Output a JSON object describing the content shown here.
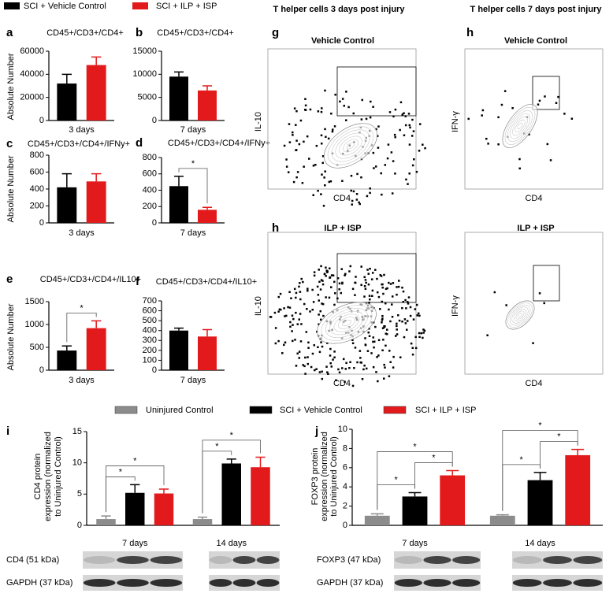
{
  "chart_data": [
    {
      "type": "bar",
      "panel": "a",
      "title": "CD45+/CD3+/CD4+",
      "ylabel": [
        "Absolute Number"
      ],
      "categories": [
        "3 days"
      ],
      "series": [
        {
          "name": "SCI + Vehicle Control",
          "color": "#000000",
          "values": [
            32000
          ],
          "errors": [
            8000
          ]
        },
        {
          "name": "SCI + ILP + ISP",
          "color": "#e31a1c",
          "values": [
            48000
          ],
          "errors": [
            7000
          ]
        }
      ],
      "ylim": [
        0,
        60000
      ],
      "yticks": [
        0,
        20000,
        40000,
        60000
      ]
    },
    {
      "type": "bar",
      "panel": "b",
      "title": "CD45+/CD3+/CD4+",
      "categories": [
        "7 days"
      ],
      "series": [
        {
          "name": "SCI + Vehicle Control",
          "color": "#000000",
          "values": [
            9500
          ],
          "errors": [
            1000
          ]
        },
        {
          "name": "SCI + ILP + ISP",
          "color": "#e31a1c",
          "values": [
            6500
          ],
          "errors": [
            1000
          ]
        }
      ],
      "ylim": [
        0,
        15000
      ],
      "yticks": [
        0,
        5000,
        10000,
        15000
      ]
    },
    {
      "type": "bar",
      "panel": "c",
      "title": "CD45+/CD3+/CD4+/IFNy+",
      "ylabel": [
        "Absolute Number"
      ],
      "categories": [
        "3 days"
      ],
      "series": [
        {
          "name": "SCI + Vehicle Control",
          "color": "#000000",
          "values": [
            420
          ],
          "errors": [
            160
          ]
        },
        {
          "name": "SCI + ILP + ISP",
          "color": "#e31a1c",
          "values": [
            490
          ],
          "errors": [
            90
          ]
        }
      ],
      "ylim": [
        0,
        800
      ],
      "yticks": [
        0,
        200,
        400,
        600,
        800
      ]
    },
    {
      "type": "bar",
      "panel": "d",
      "title": "CD45+/CD3+/CD4+/IFNy+",
      "categories": [
        "7 days"
      ],
      "series": [
        {
          "name": "SCI + Vehicle Control",
          "color": "#000000",
          "values": [
            450
          ],
          "errors": [
            120
          ]
        },
        {
          "name": "SCI + ILP + ISP",
          "color": "#e31a1c",
          "values": [
            160
          ],
          "errors": [
            30
          ]
        }
      ],
      "ylim": [
        0,
        800
      ],
      "yticks": [
        0,
        200,
        400,
        600,
        800
      ],
      "significance": [
        {
          "label": "*",
          "category": 0,
          "series": [
            0,
            1
          ]
        }
      ]
    },
    {
      "type": "bar",
      "panel": "e",
      "title": "CD45+/CD3+/CD4+/IL10+",
      "ylabel": [
        "Absolute Number"
      ],
      "categories": [
        "3 days"
      ],
      "series": [
        {
          "name": "SCI + Vehicle Control",
          "color": "#000000",
          "values": [
            430
          ],
          "errors": [
            100
          ]
        },
        {
          "name": "SCI + ILP + ISP",
          "color": "#e31a1c",
          "values": [
            920
          ],
          "errors": [
            160
          ]
        }
      ],
      "ylim": [
        0,
        1500
      ],
      "yticks": [
        0,
        500,
        1000,
        1500
      ],
      "significance": [
        {
          "label": "*",
          "category": 0,
          "series": [
            0,
            1
          ]
        }
      ]
    },
    {
      "type": "bar",
      "panel": "f",
      "title": "CD45+/CD3+/CD4+/IL10+",
      "categories": [
        "7 days"
      ],
      "series": [
        {
          "name": "SCI + Vehicle Control",
          "color": "#000000",
          "values": [
            400
          ],
          "errors": [
            25
          ]
        },
        {
          "name": "SCI + ILP + ISP",
          "color": "#e31a1c",
          "values": [
            340
          ],
          "errors": [
            70
          ]
        }
      ],
      "ylim": [
        0,
        700
      ],
      "yticks": [
        0,
        100,
        200,
        300,
        400,
        500,
        600,
        700
      ]
    },
    {
      "type": "bar",
      "panel": "i",
      "ylabel": [
        "CD4 protein",
        "expression (normalized",
        "to Uninjured Control)"
      ],
      "categories": [
        "7 days",
        "14 days"
      ],
      "series": [
        {
          "name": "Uninjured Control",
          "color": "#8c8c8c",
          "values": [
            1.0,
            1.0
          ],
          "errors": [
            0.5,
            0.3
          ]
        },
        {
          "name": "SCI + Vehicle Control",
          "color": "#000000",
          "values": [
            5.2,
            9.9
          ],
          "errors": [
            1.3,
            0.7
          ]
        },
        {
          "name": "SCI + ILP + ISP",
          "color": "#e31a1c",
          "values": [
            5.1,
            9.3
          ],
          "errors": [
            0.7,
            1.6
          ]
        }
      ],
      "ylim": [
        0,
        15
      ],
      "yticks": [
        0,
        5,
        10,
        15
      ],
      "significance": [
        {
          "label": "*",
          "category": 0,
          "series": [
            0,
            1
          ]
        },
        {
          "label": "*",
          "category": 0,
          "series": [
            0,
            2
          ]
        },
        {
          "label": "*",
          "category": 1,
          "series": [
            0,
            1
          ]
        },
        {
          "label": "*",
          "category": 1,
          "series": [
            0,
            2
          ]
        }
      ],
      "blots": [
        "CD4 (51 kDa)",
        "GAPDH (37 kDa)"
      ]
    },
    {
      "type": "bar",
      "panel": "j",
      "ylabel": [
        "FOXP3 protein",
        "expression (normalized",
        "to Uninjured Control)"
      ],
      "categories": [
        "7 days",
        "14 days"
      ],
      "series": [
        {
          "name": "Uninjured Control",
          "color": "#8c8c8c",
          "values": [
            1.0,
            1.0
          ],
          "errors": [
            0.2,
            0.1
          ]
        },
        {
          "name": "SCI + Vehicle Control",
          "color": "#000000",
          "values": [
            3.0,
            4.7
          ],
          "errors": [
            0.4,
            0.8
          ]
        },
        {
          "name": "SCI + ILP + ISP",
          "color": "#e31a1c",
          "values": [
            5.2,
            7.3
          ],
          "errors": [
            0.5,
            0.6
          ]
        }
      ],
      "ylim": [
        0,
        10
      ],
      "yticks": [
        0,
        2,
        4,
        6,
        8,
        10
      ],
      "significance": [
        {
          "label": "*",
          "category": 0,
          "series": [
            0,
            1
          ]
        },
        {
          "label": "*",
          "category": 0,
          "series": [
            1,
            2
          ]
        },
        {
          "label": "*",
          "category": 0,
          "series": [
            0,
            2
          ]
        },
        {
          "label": "*",
          "category": 1,
          "series": [
            0,
            1
          ]
        },
        {
          "label": "*",
          "category": 1,
          "series": [
            1,
            2
          ]
        },
        {
          "label": "*",
          "category": 1,
          "series": [
            0,
            2
          ]
        }
      ],
      "blots": [
        "FOXP3 (47 kDa)",
        "GAPDH (37 kDa)"
      ]
    }
  ],
  "flow": {
    "headers": [
      "T helper cells 3 days post injury",
      "T helper cells 7 days post injury"
    ],
    "plots": [
      {
        "panel": "g",
        "title": "Vehicle Control",
        "ylabel": "IL-10",
        "xlabel": "CD4"
      },
      {
        "panel": "h",
        "title": "Vehicle Control",
        "ylabel": "IFN-γ",
        "xlabel": "CD4"
      },
      {
        "panel": "h",
        "title": "ILP + ISP",
        "ylabel": "IL-10",
        "xlabel": "CD4"
      },
      {
        "title": "ILP + ISP",
        "ylabel": "IFN-γ",
        "xlabel": "CD4"
      }
    ]
  }
}
